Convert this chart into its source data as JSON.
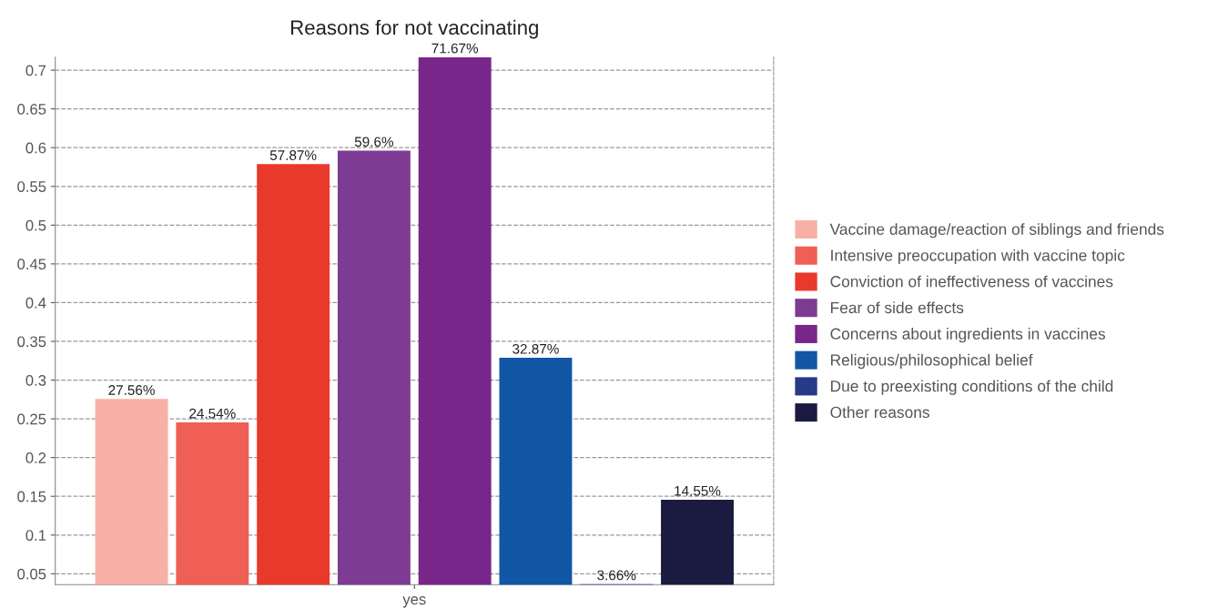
{
  "chart_data": {
    "type": "bar",
    "title": "Reasons for not vaccinating",
    "categories": [
      "yes"
    ],
    "series": [
      {
        "name": "Vaccine damage/reaction of siblings and friends",
        "color": "#f7b0a5",
        "values": [
          0.2756
        ],
        "value_labels": [
          "27.56%"
        ]
      },
      {
        "name": "Intensive preoccupation with vaccine topic",
        "color": "#ef5f55",
        "values": [
          0.2454
        ],
        "value_labels": [
          "24.54%"
        ]
      },
      {
        "name": "Conviction of ineffectiveness of vaccines",
        "color": "#e8392a",
        "values": [
          0.5787
        ],
        "value_labels": [
          "57.87%"
        ]
      },
      {
        "name": "Fear of side effects",
        "color": "#7d3b93",
        "values": [
          0.596
        ],
        "value_labels": [
          "59.6%"
        ]
      },
      {
        "name": "Concerns about ingredients in vaccines",
        "color": "#78268a",
        "values": [
          0.7167
        ],
        "value_labels": [
          "71.67%"
        ]
      },
      {
        "name": "Religious/philosophical belief",
        "color": "#1256a6",
        "values": [
          0.3287
        ],
        "value_labels": [
          "32.87%"
        ]
      },
      {
        "name": "Due to preexisting conditions of the child",
        "color": "#263a87",
        "values": [
          0.0366
        ],
        "value_labels": [
          "3.66%"
        ]
      },
      {
        "name": "Other reasons",
        "color": "#1b1a40",
        "values": [
          0.1455
        ],
        "value_labels": [
          "14.55%"
        ]
      }
    ],
    "ylim": [
      0.036,
      0.7167
    ],
    "yticks": [
      0.05,
      0.1,
      0.15,
      0.2,
      0.25,
      0.3,
      0.35,
      0.4,
      0.45,
      0.5,
      0.55,
      0.6,
      0.65,
      0.7
    ],
    "grid": "y",
    "legend": "right"
  }
}
